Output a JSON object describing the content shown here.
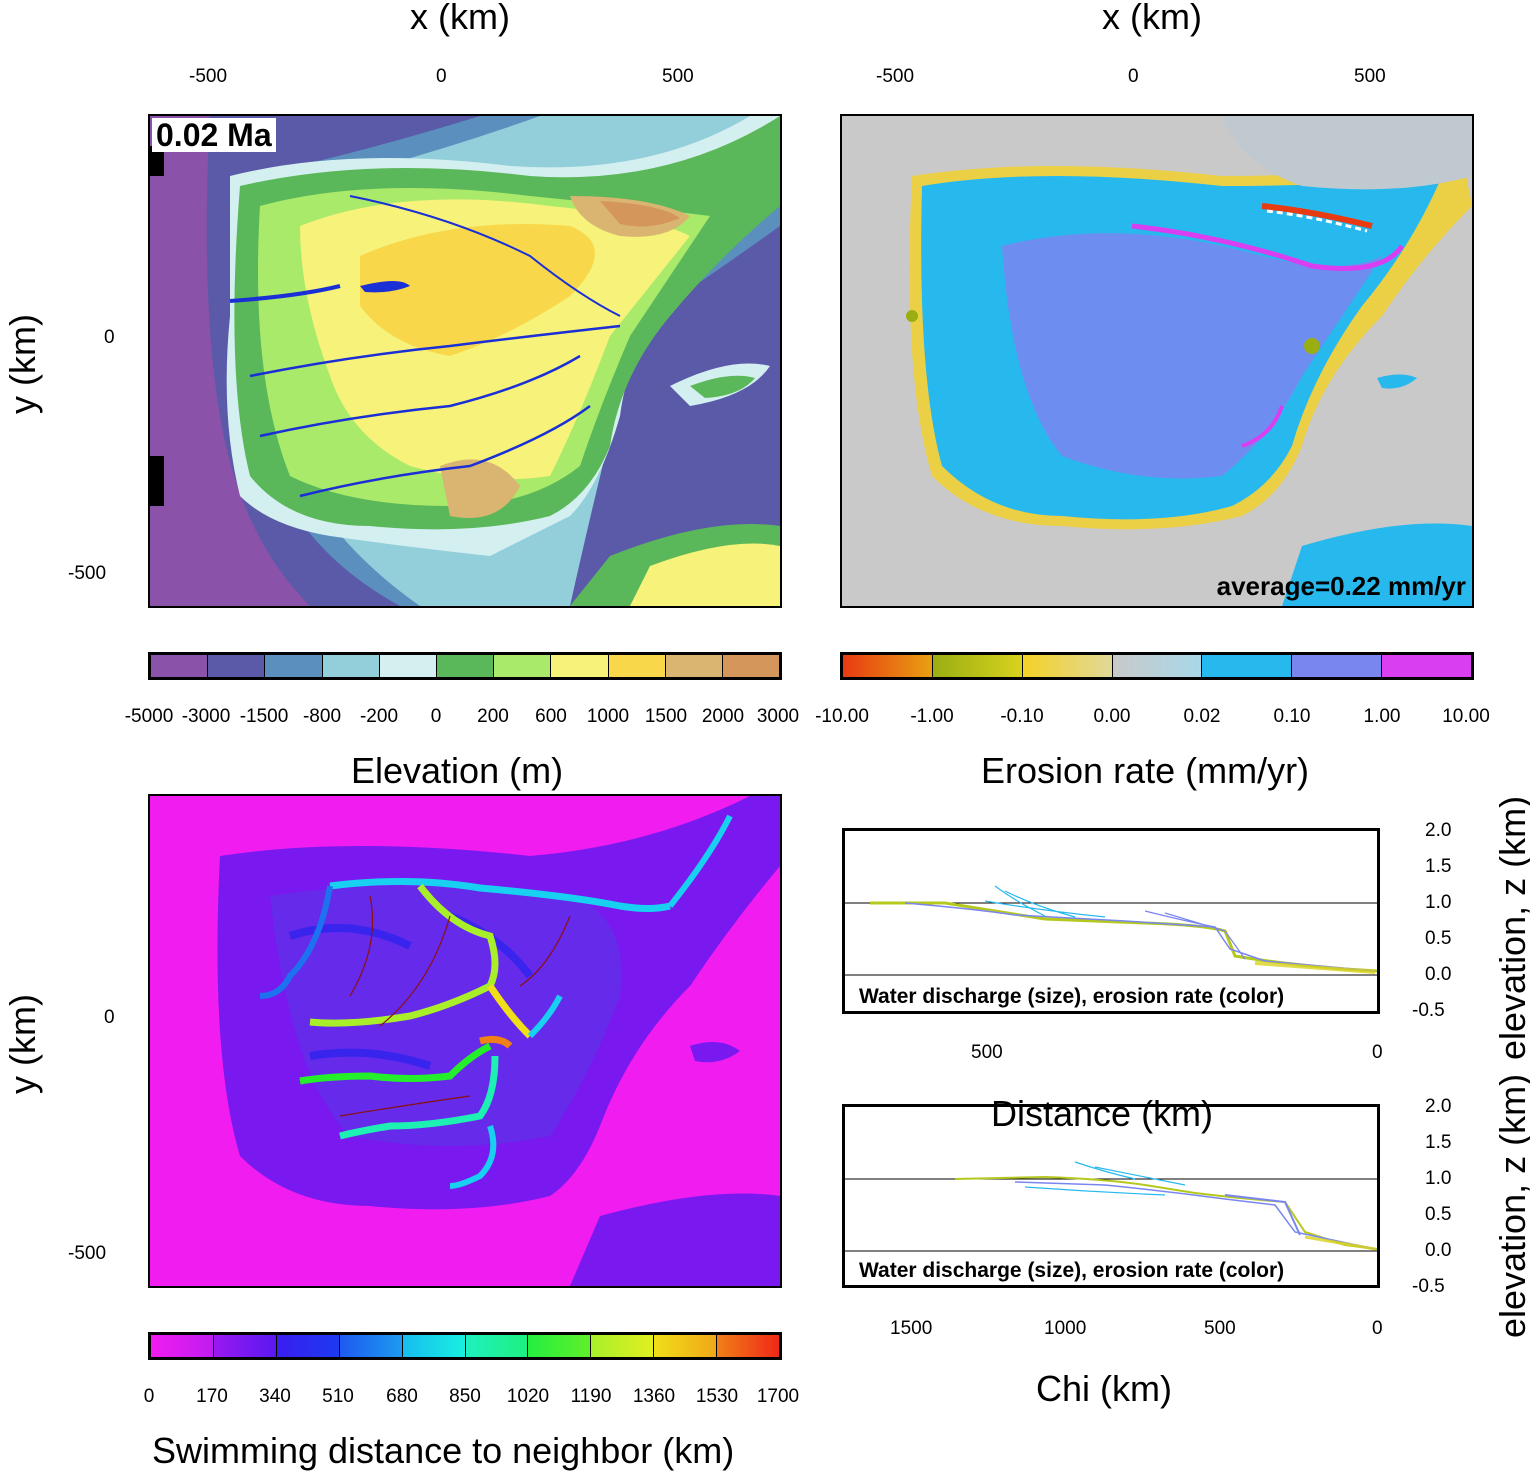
{
  "top_axes": {
    "x_label": "x (km)",
    "x_ticks": [
      "-500",
      "0",
      "500"
    ],
    "y_label": "y (km)",
    "y_ticks": [
      "0",
      "-500"
    ]
  },
  "elevation_panel": {
    "time_stamp": "0.02 Ma",
    "colorbar_title": "Elevation (m)",
    "colorbar_labels": [
      "-5000",
      "-3000",
      "-1500",
      "-800",
      "-200",
      "0",
      "200",
      "600",
      "1000",
      "1500",
      "2000",
      "3000"
    ],
    "colorbar_colors": [
      "#8a52a8",
      "#5a5aa8",
      "#5a8fbe",
      "#93cfdb",
      "#d4efef",
      "#5bb85a",
      "#a9ea6b",
      "#f6f27a",
      "#f8d84a",
      "#d9b571",
      "#d4965a"
    ]
  },
  "erosion_panel": {
    "average_label": "average=0.22 mm/yr",
    "colorbar_title": "Erosion rate (mm/yr)",
    "colorbar_labels": [
      "-10.00",
      "-1.00",
      "-0.10",
      "0.00",
      "0.02",
      "0.10",
      "1.00",
      "10.00"
    ],
    "colorbar_colors": [
      "#e83b12",
      "#9aae12",
      "#f4d226",
      "#c9c9c9",
      "#27b9ee",
      "#7a86f0",
      "#d93ef0"
    ]
  },
  "swimming_panel": {
    "y_label": "y (km)",
    "y_ticks": [
      "0",
      "-500"
    ],
    "colorbar_title": "Swimming distance to neighbor (km)",
    "colorbar_labels": [
      "0",
      "170",
      "340",
      "510",
      "680",
      "850",
      "1020",
      "1190",
      "1360",
      "1530",
      "1700"
    ],
    "colorbar_colors": [
      "#e21cf4",
      "#7a18f0",
      "#1d22f0",
      "#1d72f0",
      "#18d0f0",
      "#1ef0b4",
      "#24ef2a",
      "#a8ef2a",
      "#f0de18",
      "#f08018"
    ]
  },
  "profile_top": {
    "caption": "Water discharge (size), erosion rate (color)",
    "x_label": "Distance (km)",
    "x_ticks": [
      "500",
      "0"
    ],
    "y_label": "elevation, z (km)",
    "y_ticks": [
      "2.0",
      "1.5",
      "1.0",
      "0.5",
      "0.0",
      "-0.5"
    ]
  },
  "profile_bottom": {
    "caption": "Water discharge (size), erosion rate (color)",
    "x_label": "Chi (km)",
    "x_ticks": [
      "1500",
      "1000",
      "500",
      "0"
    ],
    "y_label": "elevation, z (km)",
    "y_ticks": [
      "2.0",
      "1.5",
      "1.0",
      "0.5",
      "0.0",
      "-0.5"
    ]
  }
}
